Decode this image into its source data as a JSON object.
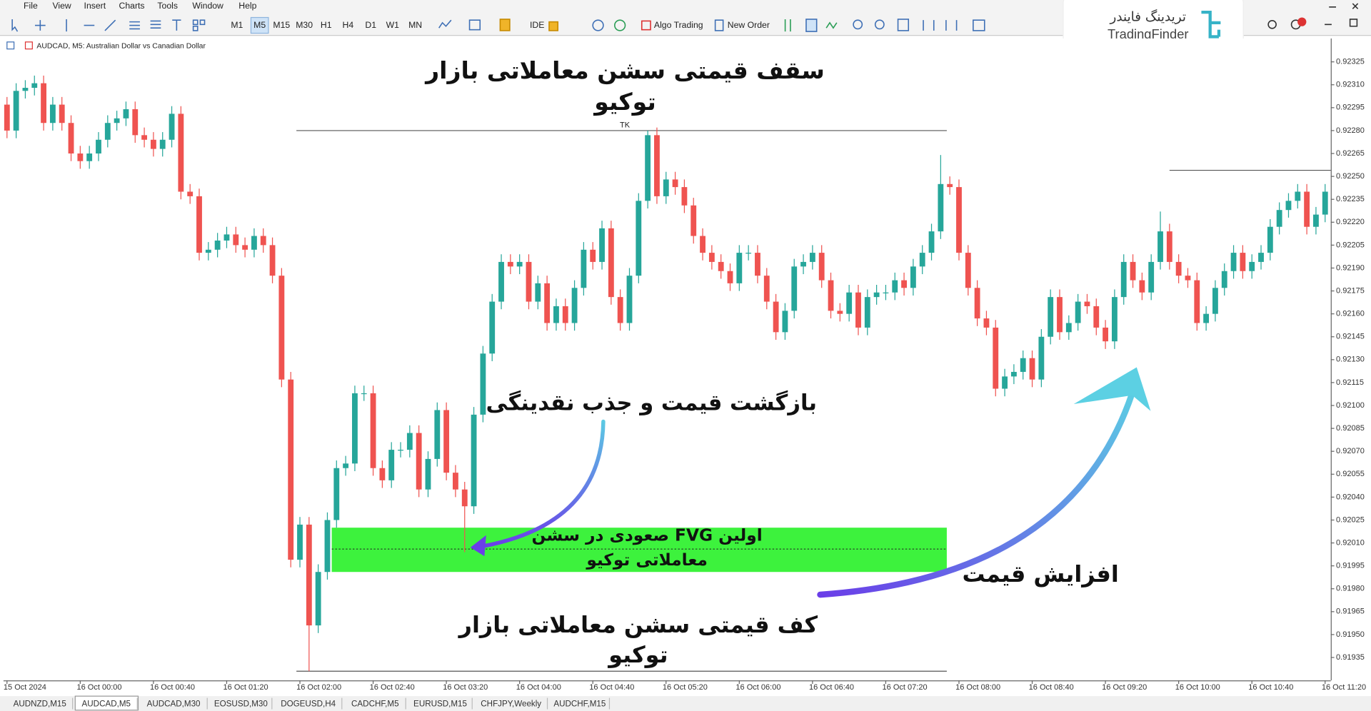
{
  "menu": [
    "File",
    "View",
    "Insert",
    "Charts",
    "Tools",
    "Window",
    "Help"
  ],
  "timeframes": [
    "M1",
    "M5",
    "M15",
    "M30",
    "H1",
    "H4",
    "D1",
    "W1",
    "MN"
  ],
  "toolbar": {
    "ide": "IDE",
    "algo": "Algo Trading",
    "order": "New Order"
  },
  "logo": {
    "fa": "تریدینگ فایندر",
    "en": "TradingFinder"
  },
  "tabs": [
    "AUDNZD,M15",
    "AUDCAD,M5",
    "AUDCAD,M30",
    "EOSUSD,M30",
    "DOGEUSD,H4",
    "CADCHF,M5",
    "EURUSD,M15",
    "CHFJPY,Weekly",
    "AUDCHF,M15"
  ],
  "chart_data": {
    "type": "candlestick",
    "title": "AUDCAD, M5:  Australian Dollar vs Canadian Dollar",
    "bull_color": "#26a69a",
    "bear_color": "#ef5350",
    "grid": false,
    "ylim": [
      0.9192,
      0.9233
    ],
    "yticks": [
      0.91935,
      {
        "value": 0.9195,
        "label": "0.91950"
      },
      0.91965,
      {
        "value": 0.9198,
        "label": "0.91980"
      },
      0.91995,
      {
        "value": 0.9201,
        "label": "0.92010"
      },
      0.92025,
      {
        "value": 0.9204,
        "label": "0.92040"
      },
      0.92055,
      {
        "value": 0.9207,
        "label": "0.92070"
      },
      0.92085,
      {
        "value": 0.921,
        "label": "0.92100"
      },
      0.92115,
      {
        "value": 0.9213,
        "label": "0.92130"
      },
      0.92145,
      {
        "value": 0.9216,
        "label": "0.92160"
      },
      0.92175,
      {
        "value": 0.9219,
        "label": "0.92190"
      },
      0.92205,
      {
        "value": 0.9222,
        "label": "0.92220"
      },
      0.92235,
      {
        "value": 0.9225,
        "label": "0.92250"
      },
      0.92265,
      {
        "value": 0.9228,
        "label": "0.92280"
      },
      0.92295,
      {
        "value": 0.9231,
        "label": "0.92310"
      },
      0.92325
    ],
    "categories": [
      "15 Oct 2024",
      null,
      null,
      null,
      null,
      null,
      null,
      null,
      "16 Oct 00:00",
      null,
      null,
      null,
      null,
      null,
      null,
      null,
      "16 Oct 00:40",
      null,
      null,
      null,
      null,
      null,
      null,
      null,
      "16 Oct 01:20",
      null,
      null,
      null,
      null,
      null,
      null,
      null,
      "16 Oct 02:00",
      null,
      null,
      null,
      null,
      null,
      null,
      null,
      "16 Oct 02:40",
      null,
      null,
      null,
      null,
      null,
      null,
      null,
      "16 Oct 03:20",
      null,
      null,
      null,
      null,
      null,
      null,
      null,
      "16 Oct 04:00",
      null,
      null,
      null,
      null,
      null,
      null,
      null,
      "16 Oct 04:40",
      null,
      null,
      null,
      null,
      null,
      null,
      null,
      "16 Oct 05:20",
      null,
      null,
      null,
      null,
      null,
      null,
      null,
      "16 Oct 06:00",
      null,
      null,
      null,
      null,
      null,
      null,
      null,
      "16 Oct 06:40",
      null,
      null,
      null,
      null,
      null,
      null,
      null,
      "16 Oct 07:20",
      null,
      null,
      null,
      null,
      null,
      null,
      null,
      "16 Oct 08:00",
      null,
      null,
      null,
      null,
      null,
      null,
      null,
      "16 Oct 08:40",
      null,
      null,
      null,
      null,
      null,
      null,
      null,
      "16 Oct 09:20",
      null,
      null,
      null,
      null,
      null,
      null,
      null,
      "16 Oct 10:00",
      null,
      null,
      null,
      null,
      null,
      null,
      null,
      "16 Oct 10:40",
      null,
      null,
      null,
      null,
      null,
      null,
      null,
      "16 Oct 11:20"
    ],
    "open": [
      0.92297,
      0.9228,
      0.92306,
      0.92308,
      0.92311,
      0.92285,
      0.92297,
      0.92285,
      0.92265,
      0.9226,
      0.92265,
      0.92274,
      0.92285,
      0.92288,
      0.92294,
      0.92277,
      0.92274,
      0.92268,
      0.92274,
      0.92291,
      0.9224,
      0.92237,
      0.922,
      0.92202,
      0.92208,
      0.92212,
      0.92205,
      0.92202,
      0.92211,
      0.92205,
      0.92185,
      0.92117,
      0.91999,
      0.92022,
      0.91956,
      0.91991,
      0.92025,
      0.92059,
      0.92062,
      0.92108,
      0.92108,
      0.92059,
      0.92051,
      0.92071,
      0.92071,
      0.92082,
      0.92045,
      0.92065,
      0.92097,
      0.92056,
      0.92045,
      0.92034,
      0.92094,
      0.92134,
      0.92168,
      0.92194,
      0.92191,
      0.92194,
      0.92168,
      0.9218,
      0.92154,
      0.92165,
      0.92154,
      0.92177,
      0.92202,
      0.92194,
      0.92216,
      0.92171,
      0.92154,
      0.92185,
      0.92234,
      0.92277,
      0.92237,
      0.92248,
      0.92243,
      0.92231,
      0.92211,
      0.922,
      0.92194,
      0.92188,
      0.9218,
      0.922,
      0.922,
      0.92185,
      0.92168,
      0.92148,
      0.92162,
      0.92191,
      0.92194,
      0.922,
      0.92182,
      0.92162,
      0.9216,
      0.92174,
      0.92151,
      0.92171,
      0.92174,
      0.92174,
      0.92182,
      0.92177,
      0.92191,
      0.922,
      0.92214,
      0.92245,
      0.92243,
      0.922,
      0.92177,
      0.92157,
      0.92151,
      0.92111,
      0.92119,
      0.92122,
      0.92131,
      0.92117,
      0.92145,
      0.92171,
      0.92148,
      0.92154,
      0.92168,
      0.92165,
      0.92151,
      0.92142,
      0.92171,
      0.92194,
      0.92182,
      0.92174,
      0.92194,
      0.92214,
      0.92194,
      0.92185,
      0.92182,
      0.92154,
      0.9216,
      0.92177,
      0.92188,
      0.922,
      0.92188,
      0.92194,
      0.922,
      0.92217,
      0.92228,
      0.92234,
      0.9224,
      0.92217,
      0.92225
    ],
    "high": [
      0.92302,
      0.92311,
      0.92313,
      0.92316,
      0.92316,
      0.92302,
      0.92302,
      0.9229,
      0.9227,
      0.9227,
      0.92279,
      0.9229,
      0.92293,
      0.92299,
      0.92299,
      0.92282,
      0.92279,
      0.92279,
      0.92296,
      0.92296,
      0.92245,
      0.92242,
      0.92207,
      0.92213,
      0.92217,
      0.92217,
      0.9221,
      0.92216,
      0.92216,
      0.9221,
      0.9219,
      0.92122,
      0.92027,
      0.92027,
      0.91996,
      0.9203,
      0.92064,
      0.92067,
      0.92113,
      0.92113,
      0.92113,
      0.92064,
      0.92076,
      0.92076,
      0.92087,
      0.92087,
      0.9207,
      0.92102,
      0.92102,
      0.92061,
      0.9205,
      0.92099,
      0.92139,
      0.92173,
      0.92199,
      0.92199,
      0.92199,
      0.92199,
      0.92185,
      0.92185,
      0.9217,
      0.9217,
      0.92182,
      0.92207,
      0.92207,
      0.92221,
      0.92221,
      0.92176,
      0.9219,
      0.92239,
      0.9228,
      0.92282,
      0.92253,
      0.92253,
      0.92248,
      0.92236,
      0.92216,
      0.92205,
      0.92199,
      0.92193,
      0.92205,
      0.92205,
      0.92205,
      0.9219,
      0.92173,
      0.92167,
      0.92196,
      0.92199,
      0.92205,
      0.92205,
      0.92187,
      0.92167,
      0.92179,
      0.92179,
      0.92176,
      0.92179,
      0.92179,
      0.92187,
      0.92187,
      0.92196,
      0.92205,
      0.92219,
      0.92264,
      0.9225,
      0.92248,
      0.92205,
      0.92182,
      0.92162,
      0.92156,
      0.92124,
      0.92127,
      0.92136,
      0.92136,
      0.9215,
      0.92176,
      0.92176,
      0.92159,
      0.92173,
      0.92173,
      0.9217,
      0.92156,
      0.92176,
      0.92199,
      0.92199,
      0.92187,
      0.92199,
      0.92227,
      0.92219,
      0.92199,
      0.9219,
      0.92187,
      0.92165,
      0.92182,
      0.92193,
      0.92205,
      0.92205,
      0.92199,
      0.92205,
      0.92222,
      0.92233,
      0.92239,
      0.92245,
      0.92245,
      0.9223,
      0.92245
    ],
    "low": [
      0.92275,
      0.92275,
      0.92301,
      0.92303,
      0.9228,
      0.9228,
      0.9228,
      0.9226,
      0.92255,
      0.92255,
      0.9226,
      0.92269,
      0.9228,
      0.92283,
      0.92272,
      0.92269,
      0.92263,
      0.92263,
      0.92269,
      0.92235,
      0.92232,
      0.92195,
      0.92195,
      0.92197,
      0.92203,
      0.922,
      0.92197,
      0.92197,
      0.922,
      0.9218,
      0.92112,
      0.91994,
      0.91994,
      0.91926,
      0.91951,
      0.91986,
      0.9202,
      0.92054,
      0.92057,
      0.92103,
      0.92054,
      0.92046,
      0.92046,
      0.92066,
      0.92066,
      0.9204,
      0.9204,
      0.9206,
      0.92051,
      0.9204,
      0.92004,
      0.92029,
      0.92089,
      0.92129,
      0.92163,
      0.92186,
      0.92186,
      0.92163,
      0.92163,
      0.92149,
      0.92149,
      0.92149,
      0.92149,
      0.92172,
      0.92189,
      0.92189,
      0.92166,
      0.92149,
      0.92149,
      0.9218,
      0.92229,
      0.92232,
      0.92232,
      0.92238,
      0.92226,
      0.92206,
      0.92195,
      0.92189,
      0.92183,
      0.92175,
      0.92175,
      0.92195,
      0.9218,
      0.92163,
      0.92143,
      0.92143,
      0.92157,
      0.92186,
      0.92189,
      0.92177,
      0.92157,
      0.92155,
      0.92155,
      0.92146,
      0.92146,
      0.92166,
      0.92169,
      0.92169,
      0.92172,
      0.92172,
      0.92186,
      0.92195,
      0.92209,
      0.92238,
      0.92195,
      0.92172,
      0.92152,
      0.92146,
      0.92106,
      0.92106,
      0.92114,
      0.92117,
      0.92112,
      0.92112,
      0.9214,
      0.92143,
      0.92143,
      0.92149,
      0.9216,
      0.92146,
      0.92137,
      0.92137,
      0.92166,
      0.92177,
      0.92169,
      0.92169,
      0.92189,
      0.92189,
      0.9218,
      0.92177,
      0.92149,
      0.92149,
      0.92155,
      0.92172,
      0.92183,
      0.92183,
      0.92183,
      0.92189,
      0.92195,
      0.92212,
      0.92223,
      0.92229,
      0.92212,
      0.92212,
      0.9222
    ],
    "close": [
      0.9228,
      0.92306,
      0.92308,
      0.92311,
      0.92285,
      0.92297,
      0.92285,
      0.92265,
      0.9226,
      0.92265,
      0.92274,
      0.92285,
      0.92288,
      0.92294,
      0.92277,
      0.92274,
      0.92268,
      0.92274,
      0.92291,
      0.9224,
      0.92237,
      0.922,
      0.92202,
      0.92208,
      0.92212,
      0.92205,
      0.92202,
      0.92211,
      0.92205,
      0.92185,
      0.92117,
      0.91999,
      0.92022,
      0.91956,
      0.91991,
      0.92025,
      0.92059,
      0.92062,
      0.92108,
      0.92108,
      0.92059,
      0.92051,
      0.92071,
      0.92071,
      0.92082,
      0.92045,
      0.92065,
      0.92097,
      0.92056,
      0.92045,
      0.92034,
      0.92094,
      0.92134,
      0.92168,
      0.92194,
      0.92191,
      0.92194,
      0.92168,
      0.9218,
      0.92154,
      0.92165,
      0.92154,
      0.92177,
      0.92202,
      0.92194,
      0.92216,
      0.92171,
      0.92154,
      0.92185,
      0.92234,
      0.92277,
      0.92237,
      0.92248,
      0.92243,
      0.92231,
      0.92211,
      0.922,
      0.92194,
      0.92188,
      0.9218,
      0.922,
      0.922,
      0.92185,
      0.92168,
      0.92148,
      0.92162,
      0.92191,
      0.92194,
      0.922,
      0.92182,
      0.92162,
      0.9216,
      0.92174,
      0.92151,
      0.92171,
      0.92174,
      0.92174,
      0.92182,
      0.92177,
      0.92191,
      0.922,
      0.92214,
      0.92245,
      0.92243,
      0.922,
      0.92177,
      0.92157,
      0.92151,
      0.92111,
      0.92119,
      0.92122,
      0.92131,
      0.92117,
      0.92145,
      0.92171,
      0.92148,
      0.92154,
      0.92168,
      0.92165,
      0.92151,
      0.92142,
      0.92171,
      0.92194,
      0.92182,
      0.92174,
      0.92194,
      0.92214,
      0.92194,
      0.92185,
      0.92182,
      0.92154,
      0.9216,
      0.92177,
      0.92188,
      0.922,
      0.92188,
      0.92194,
      0.922,
      0.92217,
      0.92228,
      0.92234,
      0.9224,
      0.92217,
      0.92225,
      0.9224
    ],
    "levels": {
      "session_high": 0.9228,
      "session_low": 0.91926,
      "prior_high": 0.92254
    },
    "fvg": {
      "top": 0.9202,
      "bottom": 0.91991,
      "mid": 0.92006,
      "color": "#3df23d"
    },
    "annotations": {
      "session_label": "TK",
      "tokyo_high": [
        "سقف قیمتی سشن معاملاتی بازار",
        "توکیو"
      ],
      "pullback": "بازگشت قیمت و جذب نقدینگی",
      "fvg": [
        "اولین FVG صعودی در سشن",
        "معاملاتی توکیو"
      ],
      "rise": "افزایش قیمت",
      "tokyo_low": [
        "کف قیمتی سشن معاملاتی بازار",
        "توکیو"
      ]
    }
  }
}
